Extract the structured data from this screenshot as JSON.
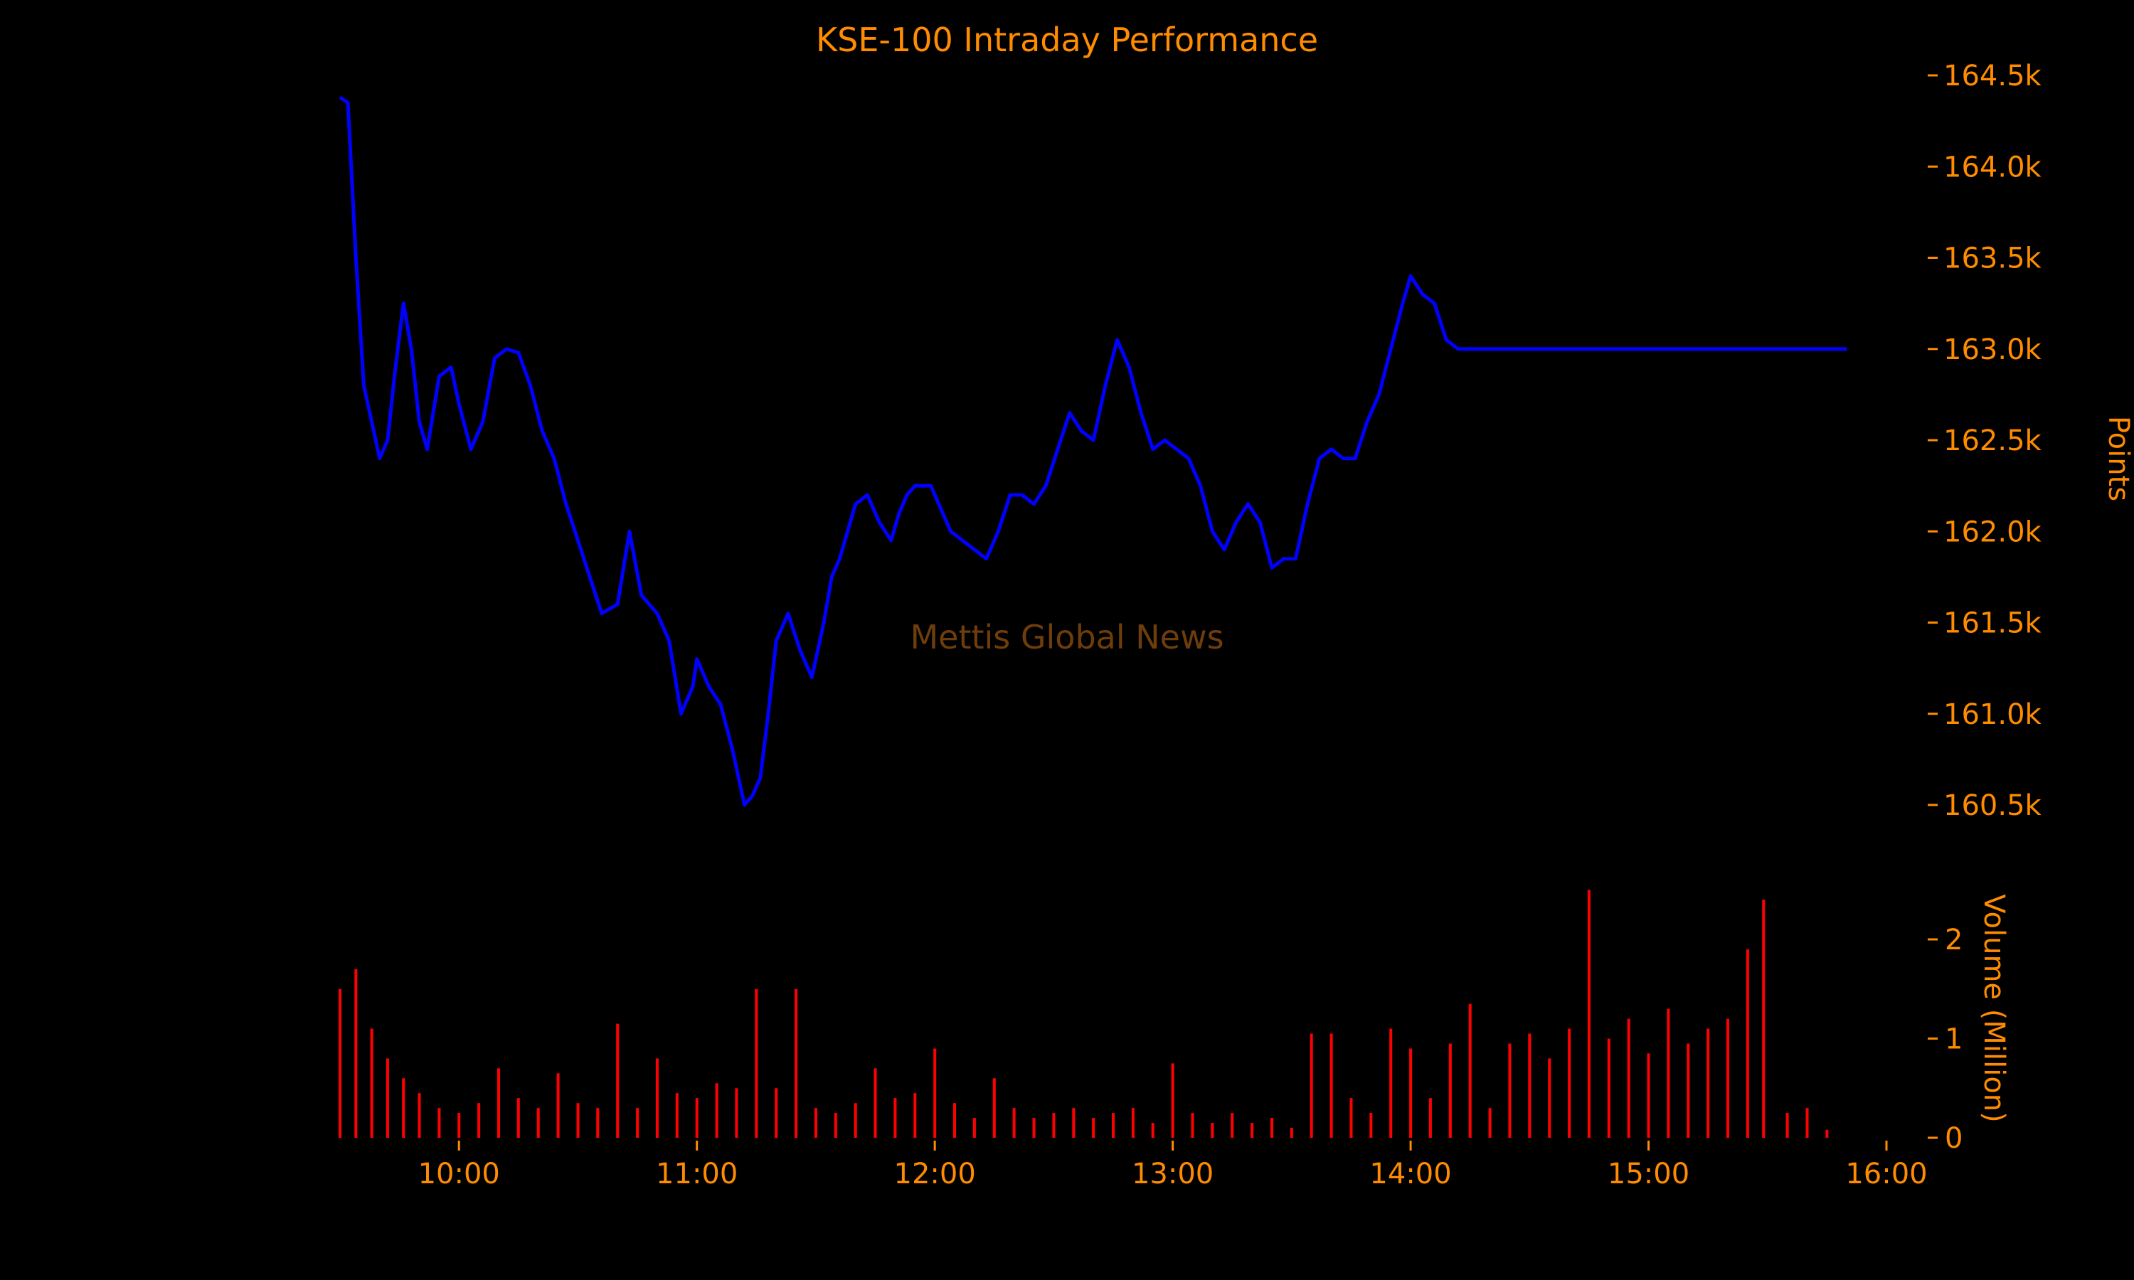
{
  "colors": {
    "background": "#000000",
    "text": "#ff8c00",
    "price_line": "#0000ff",
    "volume_bars": "#ff0000",
    "watermark": "#6e3d0c"
  },
  "chart_data": [
    {
      "type": "line",
      "title": "KSE-100 Intraday Performance",
      "xlabel": "",
      "ylabel": "Points",
      "y_axis_position": "right",
      "ylim": [
        160250,
        164750
      ],
      "yticks": [
        160500,
        161000,
        161500,
        162000,
        162500,
        163000,
        163500,
        164000,
        164500
      ],
      "ytick_labels": [
        "160.5k",
        "161.0k",
        "161.5k",
        "162.0k",
        "162.5k",
        "163.0k",
        "163.5k",
        "164.0k",
        "164.5k"
      ],
      "grid": false,
      "series": [
        {
          "x": [
            "09:30",
            "09:32",
            "09:34",
            "09:36",
            "09:38",
            "09:40",
            "09:42",
            "09:44",
            "09:46",
            "09:48",
            "09:50",
            "09:52",
            "09:55",
            "09:58",
            "10:00",
            "10:03",
            "10:06",
            "10:09",
            "10:12",
            "10:15",
            "10:18",
            "10:21",
            "10:24",
            "10:27",
            "10:30",
            "10:33",
            "10:36",
            "10:40",
            "10:43",
            "10:46",
            "10:50",
            "10:53",
            "10:56",
            "10:59",
            "11:00",
            "11:03",
            "11:06",
            "11:09",
            "11:12",
            "11:14",
            "11:16",
            "11:18",
            "11:20",
            "11:23",
            "11:26",
            "11:29",
            "11:32",
            "11:34",
            "11:36",
            "11:38",
            "11:40",
            "11:43",
            "11:46",
            "11:49",
            "11:51",
            "11:53",
            "11:55",
            "11:57",
            "11:59",
            "12:01",
            "12:04",
            "12:07",
            "12:10",
            "12:13",
            "12:16",
            "12:19",
            "12:22",
            "12:25",
            "12:28",
            "12:31",
            "12:34",
            "12:37",
            "12:40",
            "12:43",
            "12:46",
            "12:49",
            "12:52",
            "12:55",
            "12:58",
            "13:01",
            "13:04",
            "13:07",
            "13:10",
            "13:13",
            "13:16",
            "13:19",
            "13:22",
            "13:25",
            "13:28",
            "13:31",
            "13:34",
            "13:37",
            "13:40",
            "13:43",
            "13:46",
            "13:49",
            "13:52",
            "13:55",
            "13:58",
            "14:00",
            "14:03",
            "14:06",
            "14:09",
            "14:12",
            "14:15",
            "14:18",
            "14:21",
            "14:24",
            "14:27",
            "14:30",
            "14:33",
            "14:36",
            "14:39",
            "14:42",
            "14:45",
            "14:48",
            "14:51",
            "14:54",
            "14:57",
            "15:00",
            "15:03",
            "15:06",
            "15:09",
            "15:12",
            "15:15",
            "15:18",
            "15:21",
            "15:24",
            "15:27",
            "15:29",
            "15:30",
            "15:31",
            "15:33",
            "15:36",
            "15:40",
            "15:45",
            "15:50"
          ],
          "y": [
            164380,
            164350,
            163500,
            162800,
            162600,
            162400,
            162500,
            162900,
            163250,
            163000,
            162600,
            162450,
            162850,
            162900,
            162700,
            162450,
            162600,
            162950,
            163000,
            162980,
            162800,
            162550,
            162400,
            162150,
            161950,
            161750,
            161550,
            161600,
            162000,
            161650,
            161550,
            161400,
            161000,
            161150,
            161300,
            161150,
            161050,
            160800,
            160500,
            160550,
            160650,
            161000,
            161400,
            161550,
            161350,
            161200,
            161500,
            161750,
            161850,
            162000,
            162150,
            162200,
            162050,
            161950,
            162100,
            162200,
            162250,
            162250,
            162250,
            162150,
            162000,
            161950,
            161900,
            161850,
            162000,
            162200,
            162200,
            162150,
            162250,
            162450,
            162650,
            162550,
            162500,
            162800,
            163050,
            162900,
            162650,
            162450,
            162500,
            162450,
            162400,
            162250,
            162000,
            161900,
            162050,
            162150,
            162050,
            161800,
            161850,
            161850,
            162150,
            162400,
            162450,
            162400,
            162400,
            162600,
            162750,
            163000,
            163250,
            163400,
            163300,
            163250,
            163050,
            163000,
            163000,
            163000,
            163000,
            163000,
            163000,
            163000,
            163000,
            163000,
            163000,
            163000,
            163000,
            163000,
            163000,
            163000,
            163000,
            163000,
            163000,
            163000,
            163000,
            163000,
            163000,
            163000,
            163000,
            163000,
            163000,
            163000,
            163000,
            163000,
            163000,
            163000,
            163000,
            163000,
            163000
          ]
        }
      ]
    },
    {
      "type": "bar",
      "xlabel": "",
      "ylabel": "Volume (Million)",
      "y_axis_position": "right",
      "ylim": [
        0,
        2.6
      ],
      "yticks": [
        0,
        1,
        2
      ],
      "ytick_labels": [
        "0",
        "1",
        "2"
      ],
      "grid": false,
      "x_range": [
        "09:30",
        "16:00"
      ],
      "xticks": [
        "10:00",
        "11:00",
        "12:00",
        "13:00",
        "14:00",
        "15:00",
        "16:00"
      ],
      "series": [
        {
          "x": [
            "09:30",
            "09:34",
            "09:38",
            "09:42",
            "09:46",
            "09:50",
            "09:55",
            "10:00",
            "10:05",
            "10:10",
            "10:15",
            "10:20",
            "10:25",
            "10:30",
            "10:35",
            "10:40",
            "10:45",
            "10:50",
            "10:55",
            "11:00",
            "11:05",
            "11:10",
            "11:15",
            "11:20",
            "11:25",
            "11:30",
            "11:35",
            "11:40",
            "11:45",
            "11:50",
            "11:55",
            "12:00",
            "12:05",
            "12:10",
            "12:15",
            "12:20",
            "12:25",
            "12:30",
            "12:35",
            "12:40",
            "12:45",
            "12:50",
            "12:55",
            "13:00",
            "13:05",
            "13:10",
            "13:15",
            "13:20",
            "13:25",
            "13:30",
            "13:35",
            "13:40",
            "13:45",
            "13:50",
            "13:55",
            "14:00",
            "14:05",
            "14:10",
            "14:15",
            "14:20",
            "14:25",
            "14:30",
            "14:35",
            "14:40",
            "14:45",
            "14:50",
            "14:55",
            "15:00",
            "15:05",
            "15:10",
            "15:15",
            "15:20",
            "15:25",
            "15:29",
            "15:35",
            "15:40",
            "15:45"
          ],
          "values": [
            1.5,
            1.7,
            1.1,
            0.8,
            0.6,
            0.45,
            0.3,
            0.25,
            0.35,
            0.7,
            0.4,
            0.3,
            0.65,
            0.35,
            0.3,
            1.15,
            0.3,
            0.8,
            0.45,
            0.4,
            0.55,
            0.5,
            1.5,
            0.5,
            1.5,
            0.3,
            0.25,
            0.35,
            0.7,
            0.4,
            0.45,
            0.9,
            0.35,
            0.2,
            0.6,
            0.3,
            0.2,
            0.25,
            0.3,
            0.2,
            0.25,
            0.3,
            0.15,
            0.75,
            0.25,
            0.15,
            0.25,
            0.15,
            0.2,
            0.1,
            1.05,
            1.05,
            0.4,
            0.25,
            1.1,
            0.9,
            0.4,
            0.95,
            1.35,
            0.3,
            0.95,
            1.05,
            0.8,
            1.1,
            2.5,
            1.0,
            1.2,
            0.85,
            1.3,
            0.95,
            1.1,
            1.2,
            1.9,
            2.4,
            0.25,
            0.3,
            0.08
          ]
        }
      ]
    }
  ],
  "watermark": "Mettis Global News"
}
